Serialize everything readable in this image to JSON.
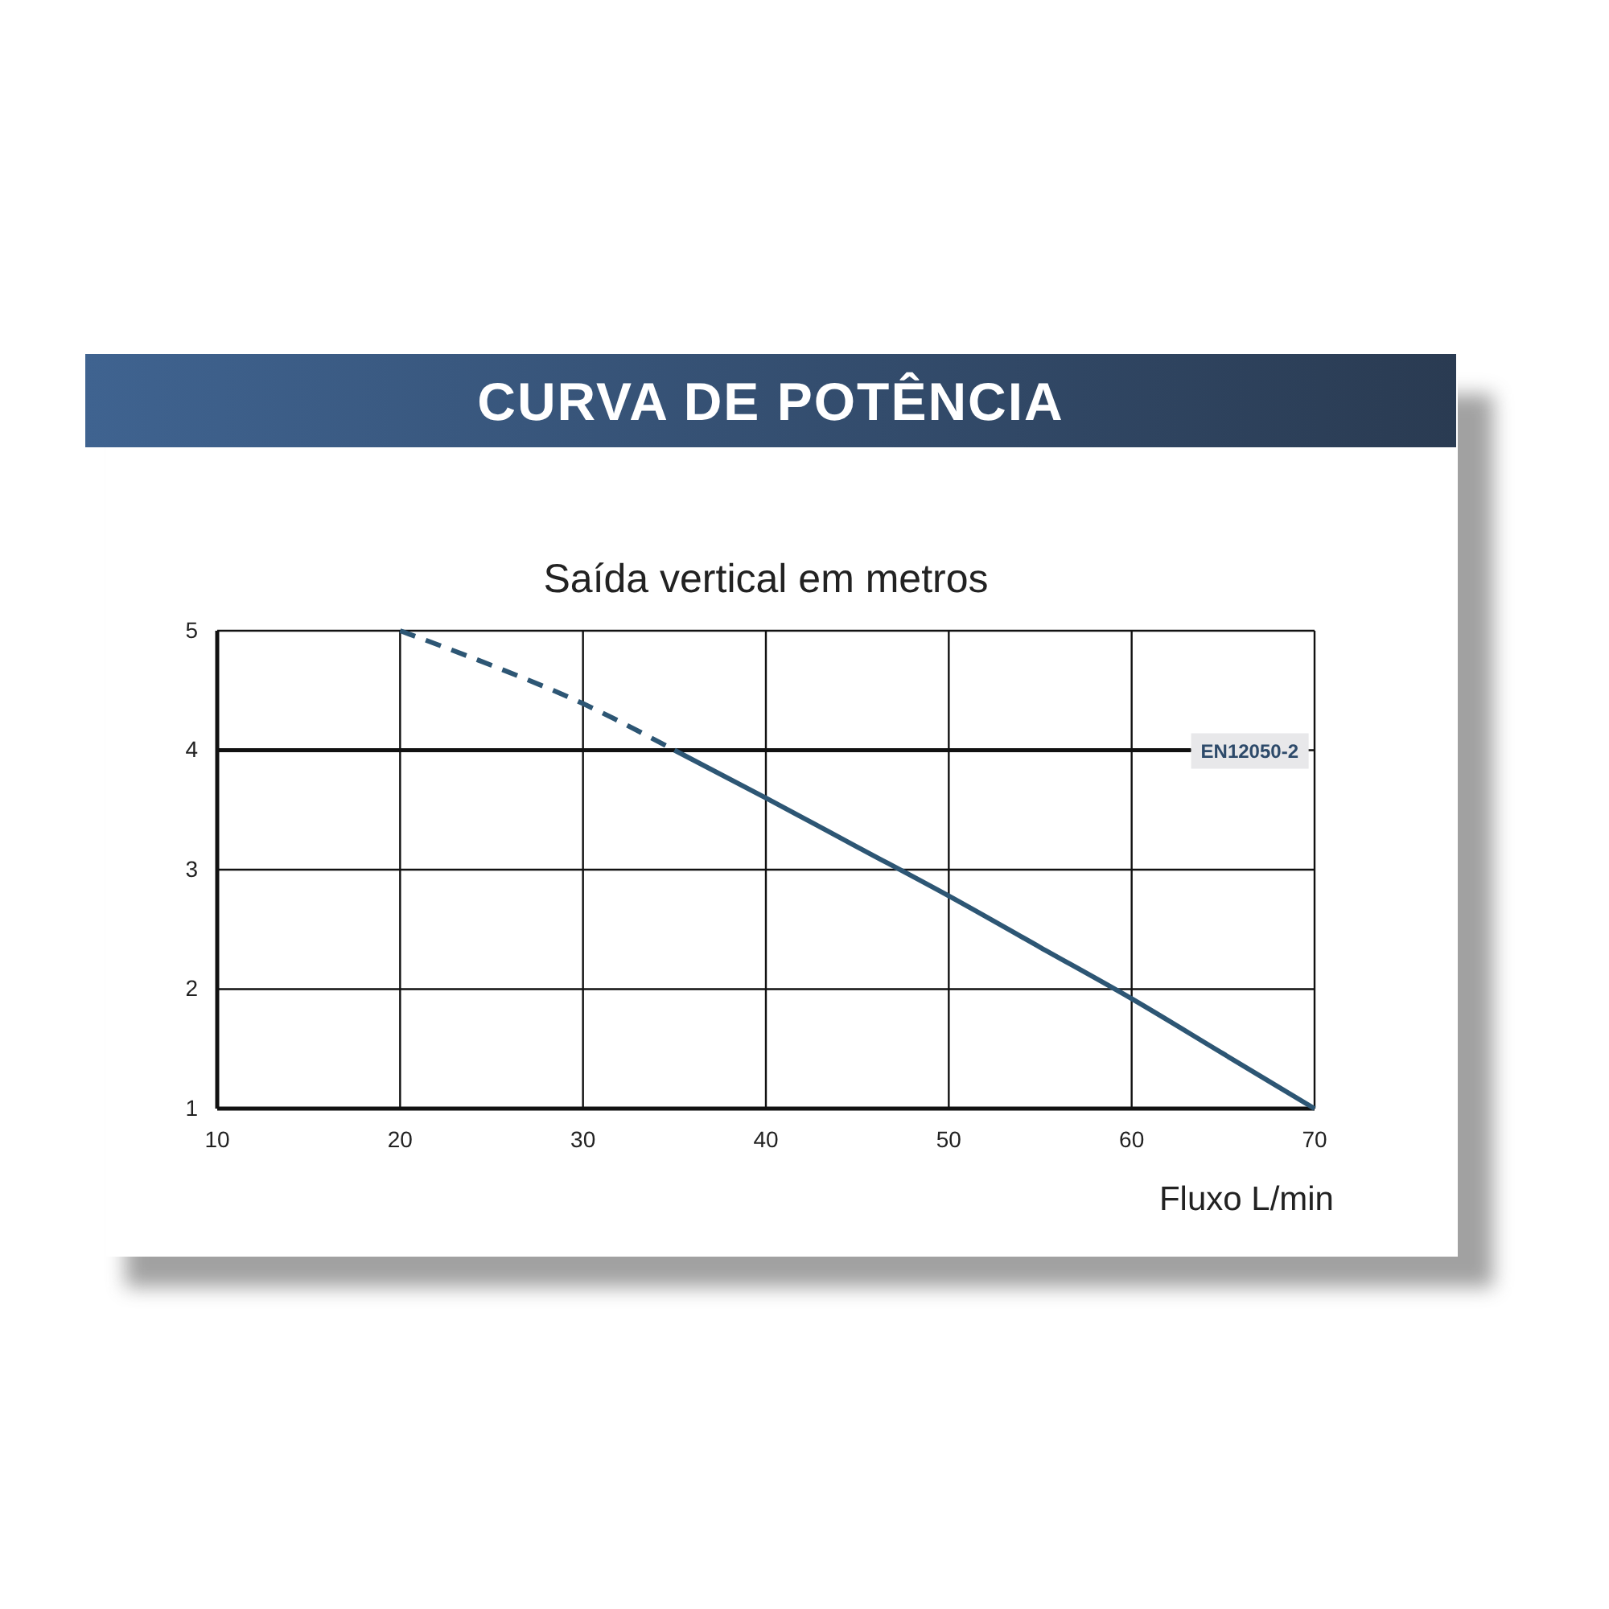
{
  "chart_data": {
    "type": "line",
    "title": "CURVA DE POTÊNCIA",
    "ylabel": "Saída vertical em metros",
    "xlabel": "Fluxo L/min",
    "xlim": [
      10,
      70
    ],
    "xticks": [
      10,
      20,
      30,
      40,
      50,
      60,
      70
    ],
    "ylim": [
      1,
      5
    ],
    "yticks": [
      1,
      2,
      3,
      4,
      5
    ],
    "grid": true,
    "marker": "none",
    "series": [
      {
        "color": "#2d5674",
        "line_style": "dashed",
        "x": [
          20,
          25,
          30,
          35
        ],
        "values": [
          5,
          4.71,
          4.39,
          4.0
        ]
      },
      {
        "color": "#2d5674",
        "line_style": "solid",
        "x": [
          35,
          40,
          45,
          50,
          55,
          60,
          65,
          70
        ],
        "values": [
          4.0,
          3.6,
          3.19,
          2.78,
          2.35,
          1.92,
          1.46,
          1.0
        ]
      }
    ],
    "ref_lines": [
      {
        "axis": "y",
        "value": 4,
        "label": "EN12050-2",
        "color": "#111111"
      }
    ]
  }
}
